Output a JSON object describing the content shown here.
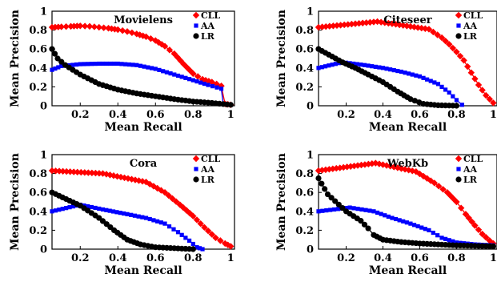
{
  "chart_data": [
    {
      "type": "line",
      "title": "Movielens",
      "xlabel": "Mean Recall",
      "ylabel": "Mean Precision",
      "xlim": [
        0.05,
        1.02
      ],
      "ylim": [
        0,
        1
      ],
      "xticks": [
        "0.2",
        "0.4",
        "0.6",
        "0.8",
        "1"
      ],
      "yticks": [
        "0",
        "0.2",
        "0.4",
        "0.6",
        "0.8",
        "1"
      ],
      "legend_position": "top-right",
      "series": [
        {
          "name": "CLL",
          "color": "#ff0000",
          "marker": "diamond",
          "points": [
            [
              0.05,
              0.83
            ],
            [
              0.1,
              0.835
            ],
            [
              0.15,
              0.84
            ],
            [
              0.2,
              0.845
            ],
            [
              0.25,
              0.84
            ],
            [
              0.3,
              0.83
            ],
            [
              0.35,
              0.82
            ],
            [
              0.4,
              0.805
            ],
            [
              0.45,
              0.785
            ],
            [
              0.5,
              0.76
            ],
            [
              0.55,
              0.73
            ],
            [
              0.6,
              0.69
            ],
            [
              0.65,
              0.63
            ],
            [
              0.7,
              0.55
            ],
            [
              0.75,
              0.44
            ],
            [
              0.8,
              0.34
            ],
            [
              0.85,
              0.28
            ],
            [
              0.9,
              0.25
            ],
            [
              0.95,
              0.21
            ],
            [
              0.97,
              0.02
            ],
            [
              1.0,
              0.01
            ]
          ]
        },
        {
          "name": "AA",
          "color": "#0000ff",
          "marker": "square",
          "points": [
            [
              0.05,
              0.38
            ],
            [
              0.1,
              0.42
            ],
            [
              0.2,
              0.44
            ],
            [
              0.3,
              0.445
            ],
            [
              0.4,
              0.445
            ],
            [
              0.5,
              0.43
            ],
            [
              0.6,
              0.39
            ],
            [
              0.7,
              0.33
            ],
            [
              0.8,
              0.27
            ],
            [
              0.88,
              0.22
            ],
            [
              0.95,
              0.18
            ],
            [
              0.96,
              0.02
            ],
            [
              1.0,
              0.01
            ]
          ]
        },
        {
          "name": "LR",
          "color": "#000000",
          "marker": "circle",
          "points": [
            [
              0.05,
              0.6
            ],
            [
              0.08,
              0.5
            ],
            [
              0.12,
              0.43
            ],
            [
              0.2,
              0.33
            ],
            [
              0.3,
              0.23
            ],
            [
              0.4,
              0.17
            ],
            [
              0.5,
              0.13
            ],
            [
              0.6,
              0.1
            ],
            [
              0.7,
              0.07
            ],
            [
              0.8,
              0.045
            ],
            [
              0.9,
              0.03
            ],
            [
              1.0,
              0.01
            ]
          ]
        }
      ]
    },
    {
      "type": "line",
      "title": "Citeseer",
      "xlabel": "Mean Recall",
      "ylabel": "Mean Precision",
      "xlim": [
        0.05,
        1.02
      ],
      "ylim": [
        0,
        1
      ],
      "xticks": [
        "0.2",
        "0.4",
        "0.6",
        "0.8",
        "1"
      ],
      "yticks": [
        "0",
        "0.2",
        "0.4",
        "0.6",
        "0.8",
        "1"
      ],
      "legend_position": "top-right",
      "series": [
        {
          "name": "CLL",
          "color": "#ff0000",
          "marker": "diamond",
          "points": [
            [
              0.05,
              0.83
            ],
            [
              0.37,
              0.89
            ],
            [
              0.65,
              0.81
            ],
            [
              0.72,
              0.72
            ],
            [
              0.76,
              0.65
            ],
            [
              0.8,
              0.57
            ],
            [
              0.84,
              0.48
            ],
            [
              0.88,
              0.35
            ],
            [
              0.92,
              0.22
            ],
            [
              0.96,
              0.11
            ],
            [
              1.0,
              0.03
            ]
          ]
        },
        {
          "name": "AA",
          "color": "#0000ff",
          "marker": "square",
          "points": [
            [
              0.05,
              0.4
            ],
            [
              0.18,
              0.46
            ],
            [
              0.3,
              0.43
            ],
            [
              0.4,
              0.4
            ],
            [
              0.5,
              0.36
            ],
            [
              0.6,
              0.31
            ],
            [
              0.7,
              0.23
            ],
            [
              0.76,
              0.14
            ],
            [
              0.8,
              0.06
            ],
            [
              0.83,
              0.01
            ]
          ]
        },
        {
          "name": "LR",
          "color": "#000000",
          "marker": "circle",
          "points": [
            [
              0.05,
              0.6
            ],
            [
              0.18,
              0.46
            ],
            [
              0.25,
              0.4
            ],
            [
              0.32,
              0.33
            ],
            [
              0.4,
              0.25
            ],
            [
              0.48,
              0.15
            ],
            [
              0.55,
              0.07
            ],
            [
              0.62,
              0.02
            ],
            [
              0.7,
              0.005
            ],
            [
              0.8,
              0.0
            ]
          ]
        }
      ]
    },
    {
      "type": "line",
      "title": "Cora",
      "xlabel": "Mean Recall",
      "ylabel": "Mean Precision",
      "xlim": [
        0.05,
        1.02
      ],
      "ylim": [
        0,
        1
      ],
      "xticks": [
        "0.2",
        "0.4",
        "0.6",
        "0.8",
        "1"
      ],
      "yticks": [
        "0",
        "0.2",
        "0.4",
        "0.6",
        "0.8",
        "1"
      ],
      "legend_position": "top-right",
      "series": [
        {
          "name": "CLL",
          "color": "#ff0000",
          "marker": "diamond",
          "points": [
            [
              0.05,
              0.83
            ],
            [
              0.32,
              0.8
            ],
            [
              0.55,
              0.71
            ],
            [
              0.65,
              0.6
            ],
            [
              0.73,
              0.47
            ],
            [
              0.8,
              0.35
            ],
            [
              0.86,
              0.23
            ],
            [
              0.92,
              0.12
            ],
            [
              0.97,
              0.06
            ],
            [
              1.0,
              0.03
            ]
          ]
        },
        {
          "name": "AA",
          "color": "#0000ff",
          "marker": "square",
          "points": [
            [
              0.05,
              0.4
            ],
            [
              0.2,
              0.47
            ],
            [
              0.32,
              0.42
            ],
            [
              0.45,
              0.37
            ],
            [
              0.55,
              0.33
            ],
            [
              0.65,
              0.27
            ],
            [
              0.72,
              0.18
            ],
            [
              0.78,
              0.09
            ],
            [
              0.82,
              0.02
            ],
            [
              0.85,
              0.0
            ]
          ]
        },
        {
          "name": "LR",
          "color": "#000000",
          "marker": "circle",
          "points": [
            [
              0.05,
              0.6
            ],
            [
              0.2,
              0.46
            ],
            [
              0.3,
              0.33
            ],
            [
              0.38,
              0.2
            ],
            [
              0.45,
              0.1
            ],
            [
              0.52,
              0.05
            ],
            [
              0.6,
              0.02
            ],
            [
              0.7,
              0.01
            ],
            [
              0.8,
              0.0
            ]
          ]
        }
      ]
    },
    {
      "type": "line",
      "title": "WebKb",
      "xlabel": "Mean Recall",
      "ylabel": "Mean Precision",
      "xlim": [
        0.05,
        1.02
      ],
      "ylim": [
        0,
        1
      ],
      "xticks": [
        "0.2",
        "0.4",
        "0.6",
        "0.8",
        "1"
      ],
      "yticks": [
        "0",
        "0.2",
        "0.4",
        "0.6",
        "0.8",
        "1"
      ],
      "legend_position": "top-right",
      "series": [
        {
          "name": "CLL",
          "color": "#ff0000",
          "marker": "diamond",
          "points": [
            [
              0.05,
              0.83
            ],
            [
              0.36,
              0.91
            ],
            [
              0.58,
              0.82
            ],
            [
              0.68,
              0.7
            ],
            [
              0.75,
              0.6
            ],
            [
              0.8,
              0.5
            ],
            [
              0.85,
              0.37
            ],
            [
              0.9,
              0.25
            ],
            [
              0.94,
              0.16
            ],
            [
              0.98,
              0.09
            ],
            [
              1.0,
              0.06
            ]
          ]
        },
        {
          "name": "AA",
          "color": "#0000ff",
          "marker": "square",
          "points": [
            [
              0.05,
              0.4
            ],
            [
              0.22,
              0.44
            ],
            [
              0.35,
              0.4
            ],
            [
              0.45,
              0.33
            ],
            [
              0.55,
              0.27
            ],
            [
              0.65,
              0.2
            ],
            [
              0.72,
              0.12
            ],
            [
              0.8,
              0.07
            ],
            [
              0.9,
              0.05
            ],
            [
              1.0,
              0.04
            ]
          ]
        },
        {
          "name": "LR",
          "color": "#000000",
          "marker": "circle",
          "points": [
            [
              0.05,
              0.75
            ],
            [
              0.1,
              0.58
            ],
            [
              0.2,
              0.4
            ],
            [
              0.28,
              0.3
            ],
            [
              0.32,
              0.22
            ],
            [
              0.35,
              0.15
            ],
            [
              0.4,
              0.1
            ],
            [
              0.5,
              0.075
            ],
            [
              0.6,
              0.06
            ],
            [
              0.7,
              0.05
            ],
            [
              0.8,
              0.04
            ],
            [
              0.9,
              0.035
            ],
            [
              1.0,
              0.03
            ]
          ]
        }
      ]
    }
  ]
}
